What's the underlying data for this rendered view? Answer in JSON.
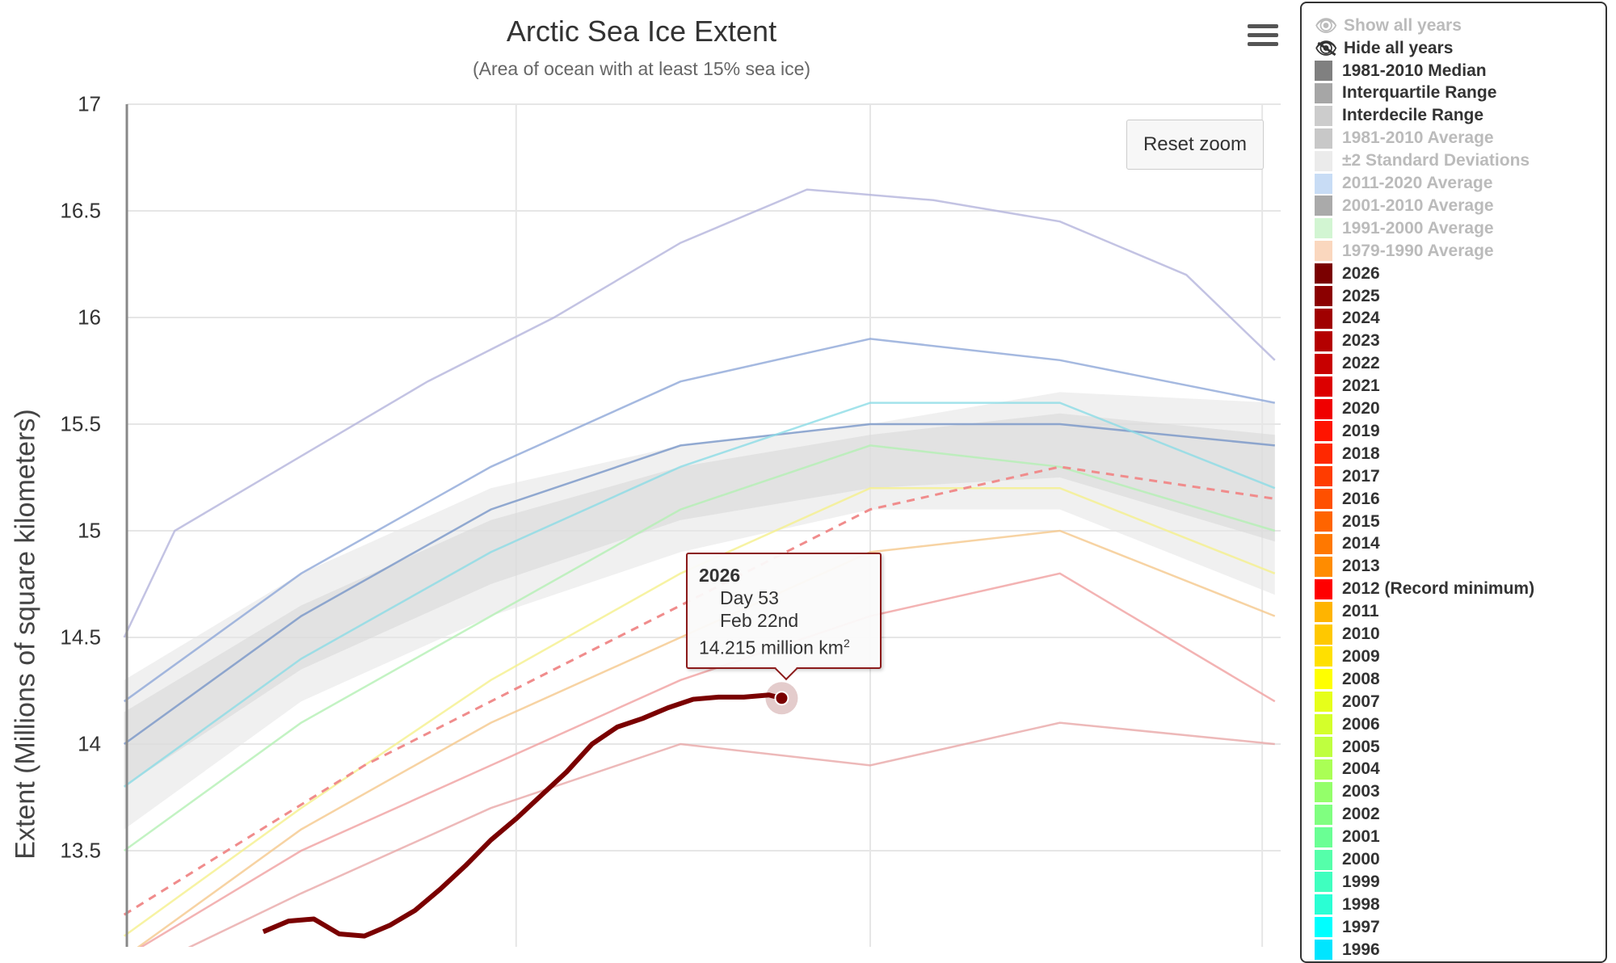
{
  "chart_data": {
    "type": "line",
    "title": "Arctic Sea Ice Extent",
    "subtitle": "(Area of ocean with at least 15% sea ice)",
    "ylabel": "Extent (Millions of square kilometers)",
    "xlabel": "",
    "ylim": [
      13.05,
      17
    ],
    "xlim": [
      1,
      92
    ],
    "y_ticks": [
      "13.5",
      "14",
      "14.5",
      "15",
      "15.5",
      "16",
      "16.5",
      "17"
    ],
    "x_gridlines_days": [
      32,
      60,
      91
    ],
    "grid": true,
    "legend_position": "right",
    "bands": [
      {
        "name": "Interdecile Range",
        "color": "#e6e6e6",
        "days": [
          1,
          15,
          30,
          45,
          60,
          75,
          92
        ],
        "low": [
          13.6,
          14.2,
          14.6,
          14.9,
          15.1,
          15.1,
          14.7
        ],
        "high": [
          14.3,
          14.8,
          15.2,
          15.4,
          15.5,
          15.65,
          15.6
        ]
      },
      {
        "name": "Interquartile Range",
        "color": "#d9d9d9",
        "days": [
          1,
          15,
          30,
          45,
          60,
          75,
          92
        ],
        "low": [
          13.8,
          14.35,
          14.75,
          15.05,
          15.2,
          15.25,
          14.95
        ],
        "high": [
          14.15,
          14.65,
          15.05,
          15.3,
          15.45,
          15.55,
          15.45
        ]
      }
    ],
    "background_series": [
      {
        "color": "#b4b4dc",
        "days": [
          1,
          5,
          15,
          25,
          35,
          45,
          55,
          65,
          75,
          85,
          92
        ],
        "values": [
          14.5,
          15.0,
          15.35,
          15.7,
          16.0,
          16.35,
          16.6,
          16.55,
          16.45,
          16.2,
          15.8
        ]
      },
      {
        "color": "#8fa8d8",
        "days": [
          1,
          15,
          30,
          45,
          60,
          75,
          92
        ],
        "values": [
          14.2,
          14.8,
          15.3,
          15.7,
          15.9,
          15.8,
          15.6
        ]
      },
      {
        "color": "#7896c8",
        "days": [
          1,
          15,
          30,
          45,
          60,
          75,
          92
        ],
        "values": [
          14.0,
          14.6,
          15.1,
          15.4,
          15.5,
          15.5,
          15.4
        ]
      },
      {
        "color": "#8cdce6",
        "days": [
          1,
          15,
          30,
          45,
          60,
          75,
          92
        ],
        "values": [
          13.8,
          14.4,
          14.9,
          15.3,
          15.6,
          15.6,
          15.2
        ]
      },
      {
        "color": "#b4f0b4",
        "days": [
          1,
          15,
          30,
          45,
          60,
          75,
          92
        ],
        "values": [
          13.5,
          14.1,
          14.6,
          15.1,
          15.4,
          15.3,
          15.0
        ]
      },
      {
        "color": "#f5f08c",
        "days": [
          1,
          15,
          30,
          45,
          60,
          75,
          92
        ],
        "values": [
          13.1,
          13.7,
          14.3,
          14.8,
          15.2,
          15.2,
          14.8
        ]
      },
      {
        "color": "#f5c88c",
        "days": [
          1,
          15,
          30,
          45,
          60,
          75,
          92
        ],
        "values": [
          13.0,
          13.6,
          14.1,
          14.5,
          14.9,
          15.0,
          14.6
        ]
      },
      {
        "color": "#f0a0a0",
        "days": [
          1,
          15,
          30,
          45,
          60,
          75,
          92
        ],
        "values": [
          13.0,
          13.5,
          13.9,
          14.3,
          14.6,
          14.8,
          14.2
        ]
      },
      {
        "color": "#e8a8a8",
        "days": [
          1,
          15,
          30,
          45,
          60,
          75,
          92
        ],
        "values": [
          12.9,
          13.3,
          13.7,
          14.0,
          13.9,
          14.1,
          14.0
        ]
      }
    ],
    "dashed_series": {
      "name": "2012 (Record minimum)",
      "color": "#f08c8c",
      "days": [
        1,
        20,
        40,
        60,
        75,
        92
      ],
      "values": [
        13.2,
        13.9,
        14.5,
        15.1,
        15.3,
        15.15
      ]
    },
    "series": [
      {
        "name": "2026",
        "color": "#7a0000",
        "days": [
          12,
          14,
          16,
          18,
          20,
          22,
          24,
          26,
          28,
          30,
          32,
          34,
          36,
          38,
          40,
          42,
          44,
          46,
          48,
          50,
          52,
          53
        ],
        "values": [
          13.12,
          13.17,
          13.18,
          13.11,
          13.1,
          13.15,
          13.22,
          13.32,
          13.43,
          13.55,
          13.65,
          13.76,
          13.87,
          14.0,
          14.08,
          14.12,
          14.17,
          14.21,
          14.22,
          14.22,
          14.23,
          14.215
        ]
      }
    ],
    "tooltip": {
      "year": "2026",
      "day": "Day 53",
      "date": "Feb 22nd",
      "value": "14.215 million km",
      "unit_sup": "2"
    }
  },
  "buttons": {
    "reset_zoom": "Reset zoom",
    "menu_icon": "hamburger-menu-icon"
  },
  "legend": {
    "show_all": "Show all years",
    "hide_all": "Hide all years",
    "items": [
      {
        "label": "1981-2010 Median",
        "color": "#808080",
        "active": true
      },
      {
        "label": "Interquartile Range",
        "color": "#a6a6a6",
        "active": true
      },
      {
        "label": "Interdecile Range",
        "color": "#cccccc",
        "active": true
      },
      {
        "label": "1981-2010 Average",
        "color": "#c8c8c8",
        "active": false
      },
      {
        "label": "±2 Standard Deviations",
        "color": "#ebebeb",
        "active": false
      },
      {
        "label": "2011-2020 Average",
        "color": "#c8dcf5",
        "active": false
      },
      {
        "label": "2001-2010 Average",
        "color": "#aaaaaa",
        "active": false
      },
      {
        "label": "1991-2000 Average",
        "color": "#d2f5d2",
        "active": false
      },
      {
        "label": "1979-1990 Average",
        "color": "#fad7be",
        "active": false
      },
      {
        "label": "2026",
        "color": "#7a0000",
        "active": true
      },
      {
        "label": "2025",
        "color": "#8b0000",
        "active": true
      },
      {
        "label": "2024",
        "color": "#a00000",
        "active": true
      },
      {
        "label": "2023",
        "color": "#b40000",
        "active": true
      },
      {
        "label": "2022",
        "color": "#c80000",
        "active": true
      },
      {
        "label": "2021",
        "color": "#dc0000",
        "active": true
      },
      {
        "label": "2020",
        "color": "#f00000",
        "active": true
      },
      {
        "label": "2019",
        "color": "#ff1400",
        "active": true
      },
      {
        "label": "2018",
        "color": "#ff2800",
        "active": true
      },
      {
        "label": "2017",
        "color": "#ff3c00",
        "active": true
      },
      {
        "label": "2016",
        "color": "#ff5000",
        "active": true
      },
      {
        "label": "2015",
        "color": "#ff6400",
        "active": true
      },
      {
        "label": "2014",
        "color": "#ff7800",
        "active": true
      },
      {
        "label": "2013",
        "color": "#ff8c00",
        "active": true
      },
      {
        "label": "2012 (Record minimum)",
        "color": "#ff0000",
        "active": true
      },
      {
        "label": "2011",
        "color": "#ffb400",
        "active": true
      },
      {
        "label": "2010",
        "color": "#ffc800",
        "active": true
      },
      {
        "label": "2009",
        "color": "#ffe000",
        "active": true
      },
      {
        "label": "2008",
        "color": "#ffff00",
        "active": true
      },
      {
        "label": "2007",
        "color": "#e6ff1a",
        "active": true
      },
      {
        "label": "2006",
        "color": "#d4ff2a",
        "active": true
      },
      {
        "label": "2005",
        "color": "#bfff3f",
        "active": true
      },
      {
        "label": "2004",
        "color": "#aaff55",
        "active": true
      },
      {
        "label": "2003",
        "color": "#94ff6a",
        "active": true
      },
      {
        "label": "2002",
        "color": "#80ff80",
        "active": true
      },
      {
        "label": "2001",
        "color": "#6aff94",
        "active": true
      },
      {
        "label": "2000",
        "color": "#55ffaa",
        "active": true
      },
      {
        "label": "1999",
        "color": "#3fffbf",
        "active": true
      },
      {
        "label": "1998",
        "color": "#2affd4",
        "active": true
      },
      {
        "label": "1997",
        "color": "#00ffff",
        "active": true
      },
      {
        "label": "1996",
        "color": "#00e5ff",
        "active": true
      }
    ]
  }
}
